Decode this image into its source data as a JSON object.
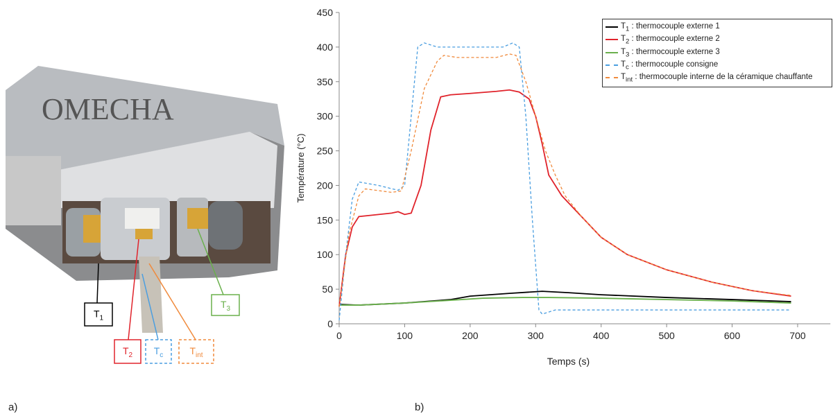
{
  "panels": {
    "a": "a)",
    "b": "b)"
  },
  "photo": {
    "engraving": "OMECHA",
    "labels": [
      {
        "main": "T",
        "sub": "1",
        "color": "#000000",
        "dashed": false
      },
      {
        "main": "T",
        "sub": "2",
        "color": "#e0232b",
        "dashed": false
      },
      {
        "main": "T",
        "sub": "c",
        "color": "#4a9ee0",
        "dashed": true
      },
      {
        "main": "T",
        "sub": "int",
        "color": "#f08a3c",
        "dashed": true
      },
      {
        "main": "T",
        "sub": "3",
        "color": "#6ab04c",
        "dashed": false
      }
    ]
  },
  "chart_data": {
    "type": "line",
    "xlabel": "Temps (s)",
    "ylabel": "Température (°C)",
    "xlim": [
      0,
      750
    ],
    "ylim": [
      0,
      450
    ],
    "xticks": [
      0,
      100,
      200,
      300,
      400,
      500,
      600,
      700
    ],
    "yticks": [
      0,
      50,
      100,
      150,
      200,
      250,
      300,
      350,
      400,
      450
    ],
    "series": [
      {
        "symbol": "T",
        "subscript": "1",
        "name": " : thermocouple externe 1",
        "color": "#000000",
        "dashed": false,
        "x": [
          0,
          30,
          100,
          170,
          200,
          260,
          310,
          350,
          400,
          500,
          600,
          690
        ],
        "values": [
          28,
          27,
          30,
          35,
          40,
          44,
          47,
          45,
          42,
          38,
          35,
          32
        ]
      },
      {
        "symbol": "T",
        "subscript": "2",
        "name": " : thermocouple externe 2",
        "color": "#e0232b",
        "dashed": false,
        "x": [
          0,
          10,
          20,
          30,
          50,
          80,
          90,
          100,
          110,
          125,
          140,
          155,
          170,
          200,
          240,
          260,
          275,
          290,
          300,
          310,
          320,
          340,
          370,
          400,
          440,
          500,
          570,
          630,
          690
        ],
        "values": [
          25,
          100,
          140,
          155,
          157,
          160,
          162,
          158,
          160,
          200,
          280,
          328,
          331,
          333,
          336,
          338,
          335,
          325,
          300,
          260,
          215,
          185,
          155,
          125,
          100,
          78,
          60,
          48,
          40
        ]
      },
      {
        "symbol": "T",
        "subscript": "3",
        "name": " : thermocouple externe 3",
        "color": "#6ab04c",
        "dashed": false,
        "x": [
          0,
          30,
          100,
          170,
          220,
          280,
          320,
          400,
          500,
          600,
          690
        ],
        "values": [
          27,
          27,
          30,
          34,
          37,
          38,
          38,
          37,
          35,
          33,
          30
        ]
      },
      {
        "symbol": "T",
        "subscript": "c",
        "name": " : thermocouple consigne",
        "color": "#4a9ee0",
        "dashed": true,
        "x": [
          0,
          10,
          20,
          30,
          60,
          90,
          100,
          110,
          120,
          130,
          150,
          250,
          265,
          275,
          285,
          295,
          305,
          310,
          330,
          690
        ],
        "values": [
          5,
          100,
          180,
          205,
          200,
          193,
          200,
          300,
          400,
          406,
          400,
          400,
          406,
          400,
          300,
          150,
          20,
          14,
          20,
          20
        ]
      },
      {
        "symbol": "T",
        "subscript": "int",
        "name": " : thermocouple interne de la céramique chauffante",
        "color": "#f08a3c",
        "dashed": true,
        "x": [
          0,
          15,
          30,
          40,
          80,
          95,
          110,
          130,
          150,
          160,
          180,
          240,
          260,
          270,
          285,
          300,
          315,
          330,
          345,
          370,
          400,
          440,
          500,
          570,
          630,
          690
        ],
        "values": [
          25,
          130,
          185,
          195,
          190,
          192,
          250,
          340,
          380,
          388,
          385,
          385,
          390,
          388,
          350,
          300,
          250,
          215,
          185,
          155,
          125,
          100,
          78,
          60,
          48,
          41
        ]
      }
    ]
  }
}
